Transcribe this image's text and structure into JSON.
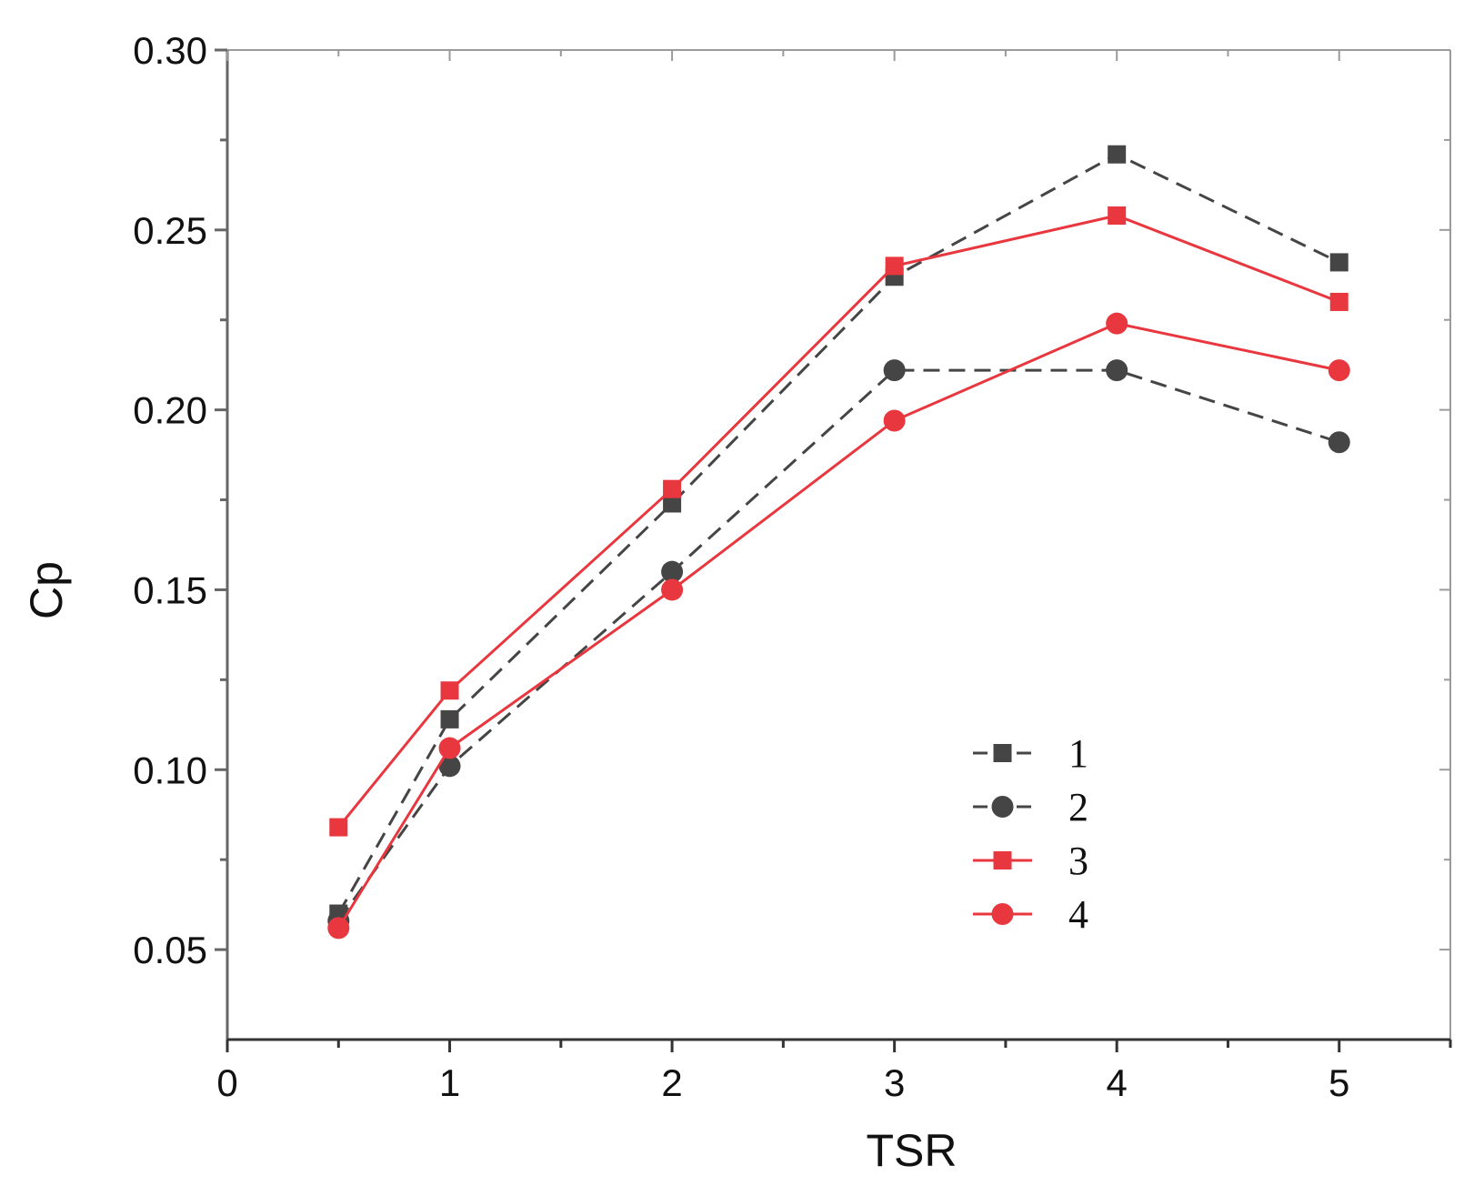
{
  "chart_data": {
    "type": "line",
    "title": "",
    "xlabel": "TSR",
    "ylabel": "Cp",
    "xlim": [
      0,
      5.5
    ],
    "ylim": [
      0.025,
      0.3
    ],
    "x_ticks": [
      0,
      1,
      2,
      3,
      4,
      5
    ],
    "x_tick_labels": [
      "0",
      "1",
      "2",
      "3",
      "4",
      "5"
    ],
    "y_ticks": [
      0.05,
      0.1,
      0.15,
      0.2,
      0.25,
      0.3
    ],
    "y_tick_labels": [
      "0.05",
      "0.10",
      "0.15",
      "0.20",
      "0.25",
      "0.30"
    ],
    "legend_position": "lower-right",
    "grid": false,
    "x": [
      0.5,
      1,
      2,
      3,
      4,
      5
    ],
    "series": [
      {
        "name": "1",
        "values": [
          0.06,
          0.114,
          0.174,
          0.237,
          0.271,
          0.241
        ],
        "color": "#454545",
        "marker": "square",
        "dash": true
      },
      {
        "name": "2",
        "values": [
          0.058,
          0.101,
          0.155,
          0.211,
          0.211,
          0.191
        ],
        "color": "#454545",
        "marker": "circle",
        "dash": true
      },
      {
        "name": "3",
        "values": [
          0.084,
          0.122,
          0.178,
          0.24,
          0.254,
          0.23
        ],
        "color": "#e8373e",
        "marker": "square",
        "dash": false
      },
      {
        "name": "4",
        "values": [
          0.056,
          0.106,
          0.15,
          0.197,
          0.224,
          0.211
        ],
        "color": "#e8373e",
        "marker": "circle",
        "dash": false
      }
    ]
  }
}
